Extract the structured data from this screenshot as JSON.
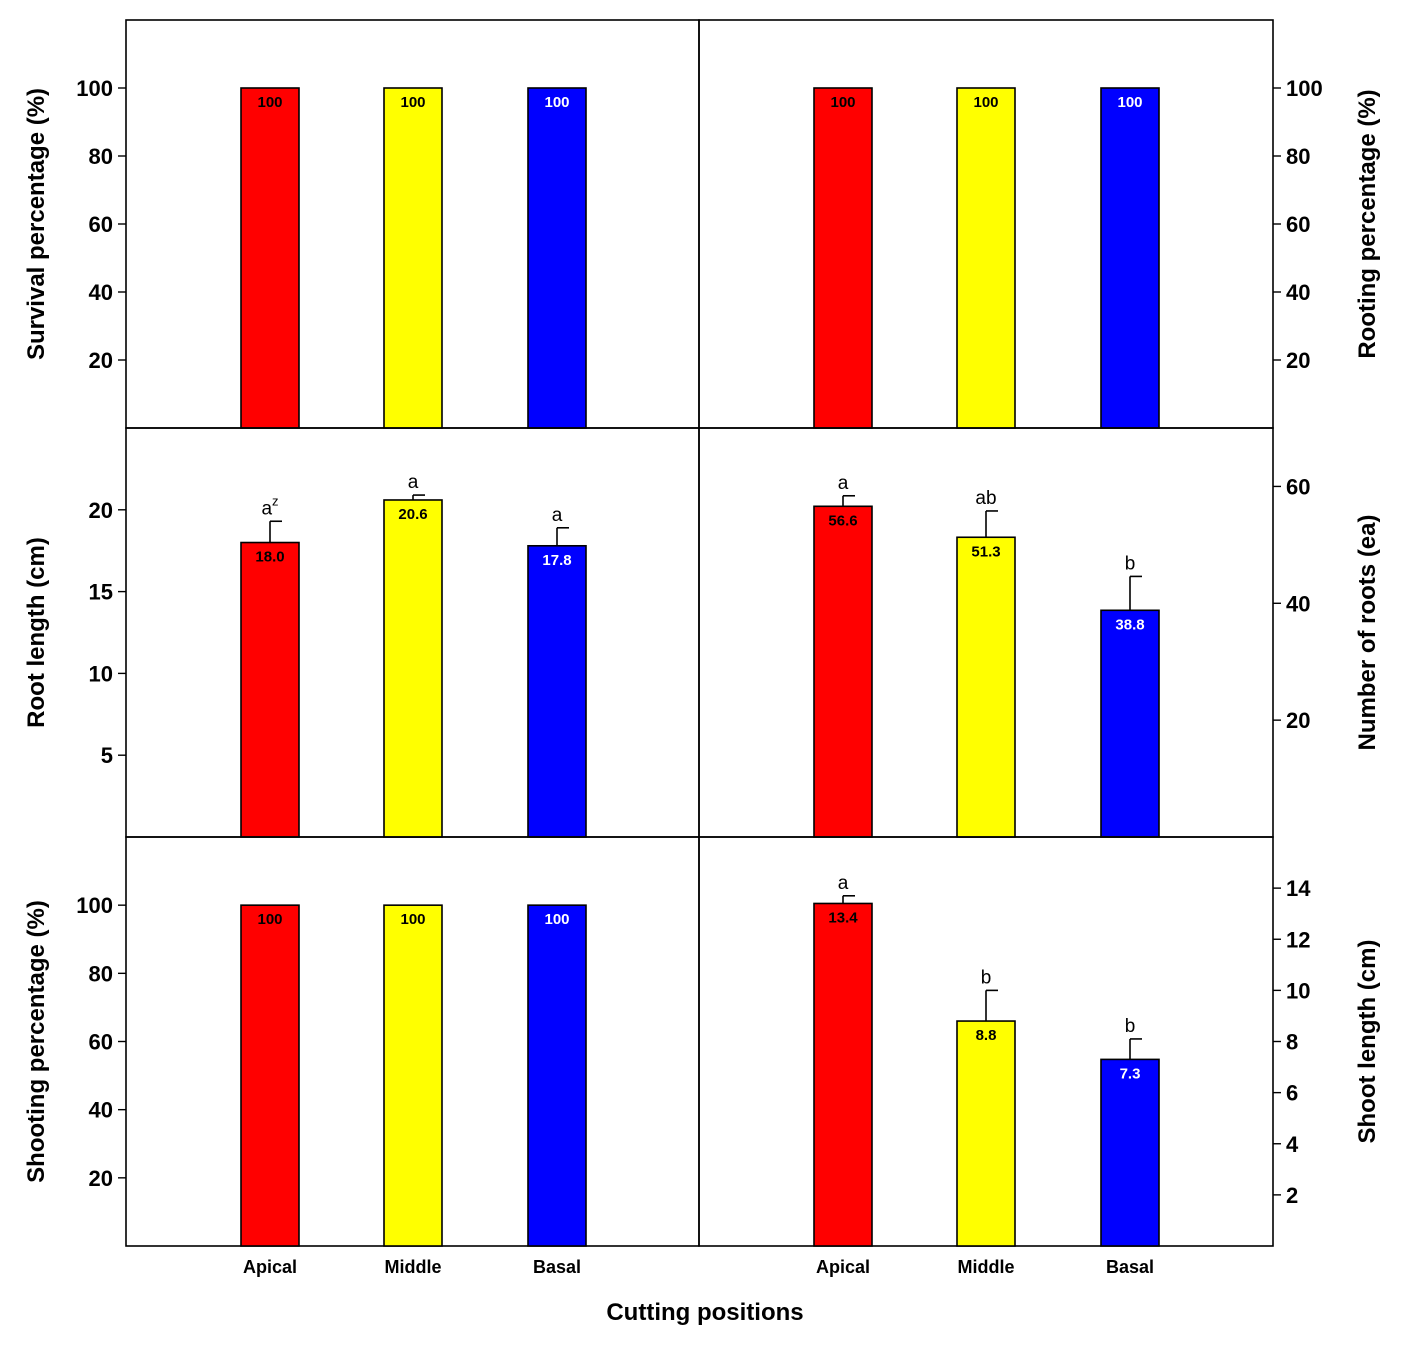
{
  "xlabel": "Cutting positions",
  "categories": [
    "Apical",
    "Middle",
    "Basal"
  ],
  "colors": [
    "#ff0000",
    "#ffff00",
    "#0000ff"
  ],
  "chart_data": [
    {
      "type": "bar",
      "ylabel": "Survival percentage (%)",
      "yaxis_side": "left",
      "ylim": [
        0,
        120
      ],
      "yticks": [
        20,
        40,
        60,
        80,
        100
      ],
      "categories": [
        "Apical",
        "Middle",
        "Basal"
      ],
      "values": [
        100,
        100,
        100
      ],
      "value_labels": [
        "100",
        "100",
        "100"
      ],
      "errors": [
        0,
        0,
        0
      ],
      "significance": [
        "",
        "",
        ""
      ],
      "sig_superscripts": [
        "",
        "",
        ""
      ]
    },
    {
      "type": "bar",
      "ylabel": "Rooting percentage (%)",
      "yaxis_side": "right",
      "ylim": [
        0,
        120
      ],
      "yticks": [
        20,
        40,
        60,
        80,
        100
      ],
      "categories": [
        "Apical",
        "Middle",
        "Basal"
      ],
      "values": [
        100,
        100,
        100
      ],
      "value_labels": [
        "100",
        "100",
        "100"
      ],
      "errors": [
        0,
        0,
        0
      ],
      "significance": [
        "",
        "",
        ""
      ],
      "sig_superscripts": [
        "",
        "",
        ""
      ]
    },
    {
      "type": "bar",
      "ylabel": "Root length (cm)",
      "yaxis_side": "left",
      "ylim": [
        0,
        25
      ],
      "yticks": [
        5,
        10,
        15,
        20
      ],
      "categories": [
        "Apical",
        "Middle",
        "Basal"
      ],
      "values": [
        18.0,
        20.6,
        17.8
      ],
      "value_labels": [
        "18.0",
        "20.6",
        "17.8"
      ],
      "errors": [
        1.3,
        0.3,
        1.1
      ],
      "significance": [
        "a",
        "a",
        "a"
      ],
      "sig_superscripts": [
        "z",
        "",
        ""
      ]
    },
    {
      "type": "bar",
      "ylabel": "Number of roots (ea)",
      "yaxis_side": "right",
      "ylim": [
        0,
        70
      ],
      "yticks": [
        20,
        40,
        60
      ],
      "categories": [
        "Apical",
        "Middle",
        "Basal"
      ],
      "values": [
        56.6,
        51.3,
        38.8
      ],
      "value_labels": [
        "56.6",
        "51.3",
        "38.8"
      ],
      "errors": [
        1.8,
        4.5,
        5.8
      ],
      "significance": [
        "a",
        "ab",
        "b"
      ],
      "sig_superscripts": [
        "",
        "",
        ""
      ]
    },
    {
      "type": "bar",
      "ylabel": "Shooting percentage (%)",
      "yaxis_side": "left",
      "ylim": [
        0,
        120
      ],
      "yticks": [
        20,
        40,
        60,
        80,
        100
      ],
      "categories": [
        "Apical",
        "Middle",
        "Basal"
      ],
      "values": [
        100,
        100,
        100
      ],
      "value_labels": [
        "100",
        "100",
        "100"
      ],
      "errors": [
        0,
        0,
        0
      ],
      "significance": [
        "",
        "",
        ""
      ],
      "sig_superscripts": [
        "",
        "",
        ""
      ]
    },
    {
      "type": "bar",
      "ylabel": "Shoot length (cm)",
      "yaxis_side": "right",
      "ylim": [
        0,
        16
      ],
      "yticks": [
        2,
        4,
        6,
        8,
        10,
        12,
        14
      ],
      "categories": [
        "Apical",
        "Middle",
        "Basal"
      ],
      "values": [
        13.4,
        8.8,
        7.3
      ],
      "value_labels": [
        "13.4",
        "8.8",
        "7.3"
      ],
      "errors": [
        0.3,
        1.2,
        0.8
      ],
      "significance": [
        "a",
        "b",
        "b"
      ],
      "sig_superscripts": [
        "",
        "",
        ""
      ]
    }
  ]
}
